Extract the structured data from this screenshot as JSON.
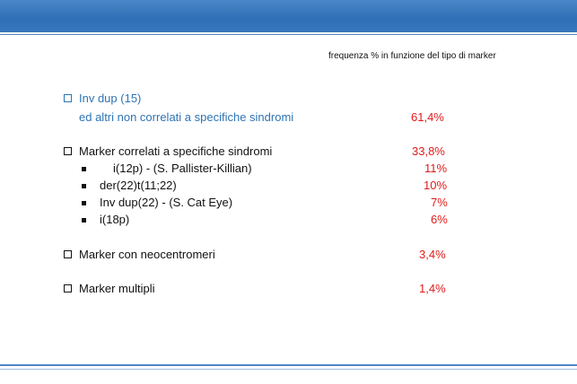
{
  "subtitle": "frequenza % in funzione del tipo di marker",
  "groups": [
    {
      "line1": "Inv dup (15)",
      "line2": "ed altri non correlati a specifiche sindromi",
      "value": "61,4%"
    },
    {
      "label": "Marker correlati a specifiche sindromi",
      "value": "33,8%",
      "items": [
        {
          "label": "i(12p) - (S. Pallister-Killian)",
          "value": "11%"
        },
        {
          "label": "der(22)t(11;22)",
          "value": "10%"
        },
        {
          "label": "Inv dup(22) - (S. Cat Eye)",
          "value": "7%"
        },
        {
          "label": "i(18p)",
          "value": "6%"
        }
      ]
    },
    {
      "label": "Marker con neocentromeri",
      "value": "3,4%"
    },
    {
      "label": "Marker multipli",
      "value": "1,4%"
    }
  ],
  "colors": {
    "accent_blue": "#2e74b5",
    "value_red": "#e01b1b",
    "bar_blue": "#3a78bd"
  }
}
